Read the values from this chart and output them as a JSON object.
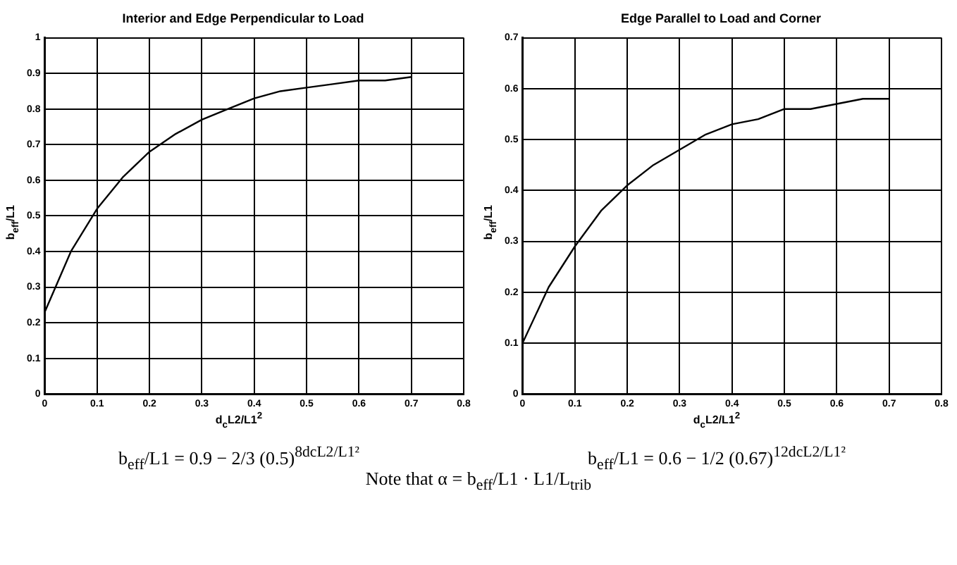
{
  "chart_data": [
    {
      "type": "line",
      "title": "Interior and Edge Perpendicular to Load",
      "xlabel": "d$_{c}$L2/L1$^{2}$",
      "ylabel": "b$_{eff}$/L1",
      "x": [
        0,
        0.05,
        0.1,
        0.15,
        0.2,
        0.25,
        0.3,
        0.35,
        0.4,
        0.45,
        0.5,
        0.55,
        0.6,
        0.65,
        0.7
      ],
      "series": [
        {
          "color": "#000000",
          "values": [
            0.23,
            0.4,
            0.52,
            0.61,
            0.68,
            0.73,
            0.77,
            0.8,
            0.83,
            0.85,
            0.86,
            0.87,
            0.88,
            0.88,
            0.89
          ]
        }
      ],
      "xlim": [
        0,
        0.8
      ],
      "xticks": [
        0,
        0.1,
        0.2,
        0.3,
        0.4,
        0.5,
        0.6,
        0.7,
        0.8
      ],
      "ylim": [
        0,
        1
      ],
      "yticks": [
        0,
        0.1,
        0.2,
        0.3,
        0.4,
        0.5,
        0.6,
        0.7,
        0.8,
        0.9,
        1
      ],
      "grid": true,
      "legend": false,
      "marker": "none",
      "line_style": "solid",
      "annotations": [
        "b$_{eff}$/L1 = 0.9 − 2/3 (0.5)$^{8dcL2/L1²}$"
      ]
    },
    {
      "type": "line",
      "title": "Edge Parallel to Load and Corner",
      "xlabel": "d$_{c}$L2/L1$^{2}$",
      "ylabel": "b$_{eff}$/L1",
      "x": [
        0,
        0.05,
        0.1,
        0.15,
        0.2,
        0.25,
        0.3,
        0.35,
        0.4,
        0.45,
        0.5,
        0.55,
        0.6,
        0.65,
        0.7
      ],
      "series": [
        {
          "color": "#000000",
          "values": [
            0.1,
            0.21,
            0.29,
            0.36,
            0.41,
            0.45,
            0.48,
            0.51,
            0.53,
            0.54,
            0.56,
            0.56,
            0.57,
            0.58,
            0.58
          ]
        }
      ],
      "xlim": [
        0,
        0.8
      ],
      "xticks": [
        0,
        0.1,
        0.2,
        0.3,
        0.4,
        0.5,
        0.6,
        0.7,
        0.8
      ],
      "ylim": [
        0,
        0.7
      ],
      "yticks": [
        0,
        0.1,
        0.2,
        0.3,
        0.4,
        0.5,
        0.6,
        0.7
      ],
      "grid": true,
      "legend": false,
      "marker": "none",
      "line_style": "solid",
      "annotations": [
        "b$_{eff}$/L1 = 0.6 − 1/2 (0.67)$^{12dcL2/L1²}$",
        "Note that α = b$_{eff}$/L1 · L1/L$_{trib}$"
      ]
    }
  ]
}
